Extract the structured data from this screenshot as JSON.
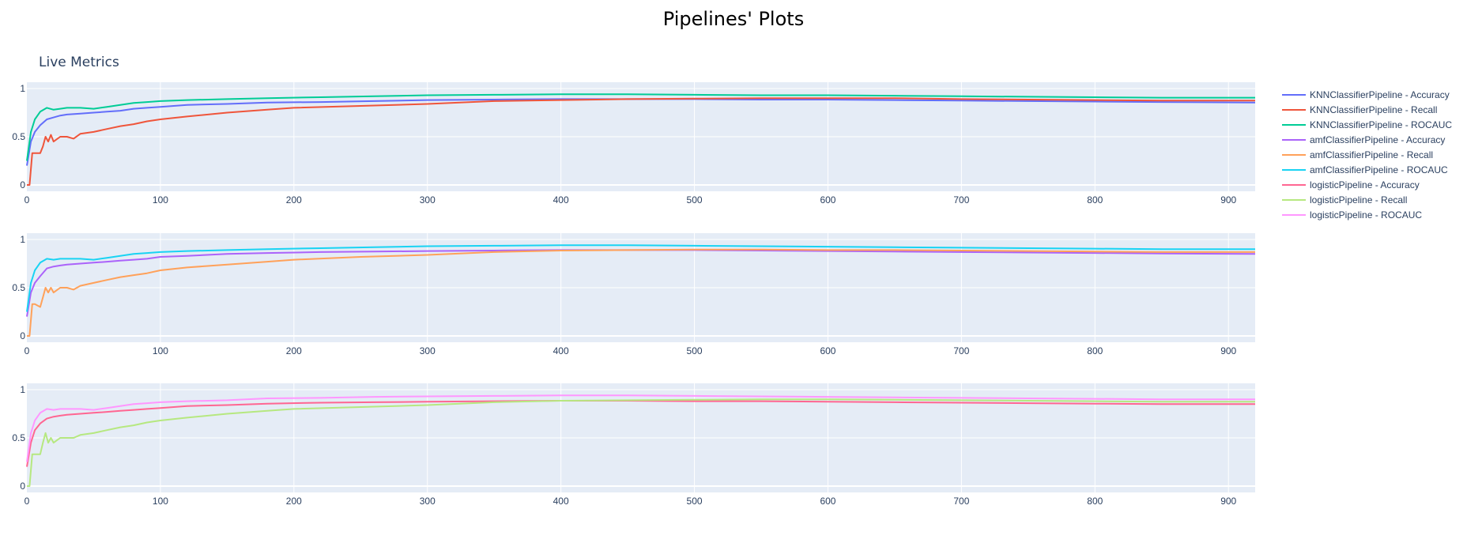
{
  "title": "Pipelines' Plots",
  "subtitle": "Live Metrics",
  "chart_data": {
    "type": "line",
    "xlim": [
      0,
      920
    ],
    "ylim": [
      0,
      1
    ],
    "x_ticks": [
      0,
      100,
      200,
      300,
      400,
      500,
      600,
      700,
      800,
      900
    ],
    "y_ticks": [
      0,
      0.5,
      1
    ],
    "y_tick_labels": [
      "0",
      "0.5",
      "1"
    ],
    "grid": true,
    "legend_position": "right",
    "panels": [
      {
        "series": [
          {
            "name": "KNNClassifierPipeline - Accuracy",
            "color": "#636efa",
            "x": [
              0,
              3,
              6,
              10,
              15,
              20,
              25,
              30,
              40,
              50,
              60,
              70,
              80,
              90,
              100,
              120,
              150,
              180,
              220,
              260,
              300,
              350,
              400,
              450,
              500,
              550,
              600,
              650,
              700,
              750,
              800,
              850,
              920
            ],
            "y": [
              0.2,
              0.45,
              0.55,
              0.62,
              0.68,
              0.7,
              0.72,
              0.73,
              0.74,
              0.75,
              0.76,
              0.77,
              0.79,
              0.8,
              0.81,
              0.83,
              0.84,
              0.855,
              0.86,
              0.87,
              0.88,
              0.885,
              0.89,
              0.89,
              0.89,
              0.885,
              0.885,
              0.88,
              0.875,
              0.87,
              0.865,
              0.86,
              0.855
            ]
          },
          {
            "name": "KNNClassifierPipeline - Recall",
            "color": "#ef553b",
            "x": [
              0,
              2,
              4,
              6,
              10,
              12,
              14,
              16,
              18,
              20,
              25,
              30,
              35,
              40,
              50,
              60,
              70,
              80,
              90,
              100,
              120,
              150,
              180,
              200,
              250,
              300,
              350,
              400,
              450,
              500,
              550,
              600,
              650,
              700,
              750,
              800,
              850,
              920
            ],
            "y": [
              0,
              0,
              0.33,
              0.33,
              0.33,
              0.4,
              0.5,
              0.45,
              0.52,
              0.45,
              0.5,
              0.5,
              0.48,
              0.53,
              0.55,
              0.58,
              0.61,
              0.63,
              0.66,
              0.68,
              0.71,
              0.75,
              0.78,
              0.8,
              0.82,
              0.84,
              0.87,
              0.88,
              0.89,
              0.895,
              0.9,
              0.9,
              0.9,
              0.89,
              0.885,
              0.88,
              0.875,
              0.875
            ]
          },
          {
            "name": "KNNClassifierPipeline - ROCAUC",
            "color": "#00cc96",
            "x": [
              0,
              3,
              6,
              10,
              15,
              20,
              25,
              30,
              40,
              50,
              60,
              70,
              80,
              90,
              100,
              120,
              150,
              180,
              220,
              260,
              300,
              350,
              400,
              450,
              500,
              550,
              600,
              650,
              700,
              750,
              800,
              850,
              920
            ],
            "y": [
              0.25,
              0.55,
              0.68,
              0.76,
              0.8,
              0.78,
              0.79,
              0.8,
              0.8,
              0.79,
              0.81,
              0.83,
              0.85,
              0.86,
              0.87,
              0.88,
              0.89,
              0.9,
              0.91,
              0.92,
              0.93,
              0.935,
              0.94,
              0.94,
              0.935,
              0.93,
              0.93,
              0.925,
              0.92,
              0.915,
              0.91,
              0.905,
              0.905
            ]
          }
        ]
      },
      {
        "series": [
          {
            "name": "amfClassifierPipeline - Accuracy",
            "color": "#ab63fa",
            "x": [
              0,
              3,
              6,
              10,
              15,
              20,
              25,
              30,
              40,
              50,
              60,
              70,
              80,
              90,
              100,
              120,
              150,
              180,
              220,
              260,
              300,
              350,
              400,
              450,
              500,
              550,
              600,
              650,
              700,
              750,
              800,
              850,
              920
            ],
            "y": [
              0.2,
              0.45,
              0.55,
              0.62,
              0.7,
              0.72,
              0.73,
              0.74,
              0.75,
              0.76,
              0.77,
              0.78,
              0.79,
              0.8,
              0.82,
              0.83,
              0.85,
              0.86,
              0.87,
              0.875,
              0.88,
              0.885,
              0.89,
              0.89,
              0.89,
              0.885,
              0.88,
              0.875,
              0.87,
              0.865,
              0.86,
              0.855,
              0.85
            ]
          },
          {
            "name": "amfClassifierPipeline - Recall",
            "color": "#ffa15a",
            "x": [
              0,
              2,
              4,
              6,
              10,
              12,
              14,
              16,
              18,
              20,
              25,
              30,
              35,
              40,
              50,
              60,
              70,
              80,
              90,
              100,
              120,
              150,
              180,
              200,
              250,
              300,
              350,
              400,
              450,
              500,
              550,
              600,
              650,
              700,
              750,
              800,
              850,
              920
            ],
            "y": [
              0,
              0,
              0.33,
              0.33,
              0.3,
              0.4,
              0.5,
              0.45,
              0.5,
              0.45,
              0.5,
              0.5,
              0.48,
              0.52,
              0.55,
              0.58,
              0.61,
              0.63,
              0.65,
              0.68,
              0.71,
              0.74,
              0.77,
              0.79,
              0.82,
              0.84,
              0.87,
              0.885,
              0.89,
              0.895,
              0.895,
              0.89,
              0.89,
              0.885,
              0.88,
              0.875,
              0.87,
              0.87
            ]
          },
          {
            "name": "amfClassifierPipeline - ROCAUC",
            "color": "#19d3f3",
            "x": [
              0,
              3,
              6,
              10,
              15,
              20,
              25,
              30,
              40,
              50,
              60,
              70,
              80,
              90,
              100,
              120,
              150,
              180,
              220,
              260,
              300,
              350,
              400,
              450,
              500,
              550,
              600,
              650,
              700,
              750,
              800,
              850,
              920
            ],
            "y": [
              0.25,
              0.55,
              0.68,
              0.76,
              0.8,
              0.79,
              0.8,
              0.8,
              0.8,
              0.79,
              0.81,
              0.83,
              0.85,
              0.86,
              0.87,
              0.88,
              0.89,
              0.9,
              0.91,
              0.92,
              0.93,
              0.935,
              0.94,
              0.94,
              0.935,
              0.93,
              0.925,
              0.92,
              0.915,
              0.91,
              0.905,
              0.9,
              0.9
            ]
          }
        ]
      },
      {
        "series": [
          {
            "name": "logisticPipeline - Accuracy",
            "color": "#ff6692",
            "x": [
              0,
              3,
              6,
              10,
              15,
              20,
              25,
              30,
              40,
              50,
              60,
              70,
              80,
              90,
              100,
              120,
              150,
              180,
              220,
              260,
              300,
              350,
              400,
              450,
              500,
              550,
              600,
              650,
              700,
              750,
              800,
              850,
              920
            ],
            "y": [
              0.2,
              0.45,
              0.58,
              0.65,
              0.7,
              0.72,
              0.73,
              0.74,
              0.75,
              0.76,
              0.77,
              0.78,
              0.79,
              0.8,
              0.81,
              0.83,
              0.84,
              0.855,
              0.865,
              0.87,
              0.875,
              0.88,
              0.885,
              0.885,
              0.88,
              0.88,
              0.875,
              0.87,
              0.865,
              0.86,
              0.855,
              0.85,
              0.85
            ]
          },
          {
            "name": "logisticPipeline - Recall",
            "color": "#b6e880",
            "x": [
              0,
              2,
              4,
              6,
              10,
              12,
              14,
              16,
              18,
              20,
              25,
              30,
              35,
              40,
              50,
              60,
              70,
              80,
              90,
              100,
              120,
              150,
              180,
              200,
              250,
              300,
              350,
              400,
              450,
              500,
              550,
              600,
              650,
              700,
              750,
              800,
              850,
              920
            ],
            "y": [
              0,
              0,
              0.33,
              0.33,
              0.33,
              0.45,
              0.55,
              0.45,
              0.5,
              0.45,
              0.5,
              0.5,
              0.5,
              0.53,
              0.55,
              0.58,
              0.61,
              0.63,
              0.66,
              0.68,
              0.71,
              0.75,
              0.78,
              0.8,
              0.82,
              0.84,
              0.87,
              0.885,
              0.89,
              0.895,
              0.9,
              0.9,
              0.895,
              0.89,
              0.885,
              0.88,
              0.875,
              0.875
            ]
          },
          {
            "name": "logisticPipeline - ROCAUC",
            "color": "#ff97ff",
            "x": [
              0,
              3,
              6,
              10,
              15,
              20,
              25,
              30,
              40,
              50,
              60,
              70,
              80,
              90,
              100,
              120,
              150,
              180,
              220,
              260,
              300,
              350,
              400,
              450,
              500,
              550,
              600,
              650,
              700,
              750,
              800,
              850,
              920
            ],
            "y": [
              0.25,
              0.55,
              0.68,
              0.76,
              0.8,
              0.79,
              0.8,
              0.8,
              0.8,
              0.79,
              0.81,
              0.83,
              0.85,
              0.86,
              0.87,
              0.88,
              0.89,
              0.91,
              0.915,
              0.925,
              0.93,
              0.935,
              0.94,
              0.94,
              0.935,
              0.93,
              0.925,
              0.92,
              0.915,
              0.91,
              0.905,
              0.9,
              0.9
            ]
          }
        ]
      }
    ]
  }
}
